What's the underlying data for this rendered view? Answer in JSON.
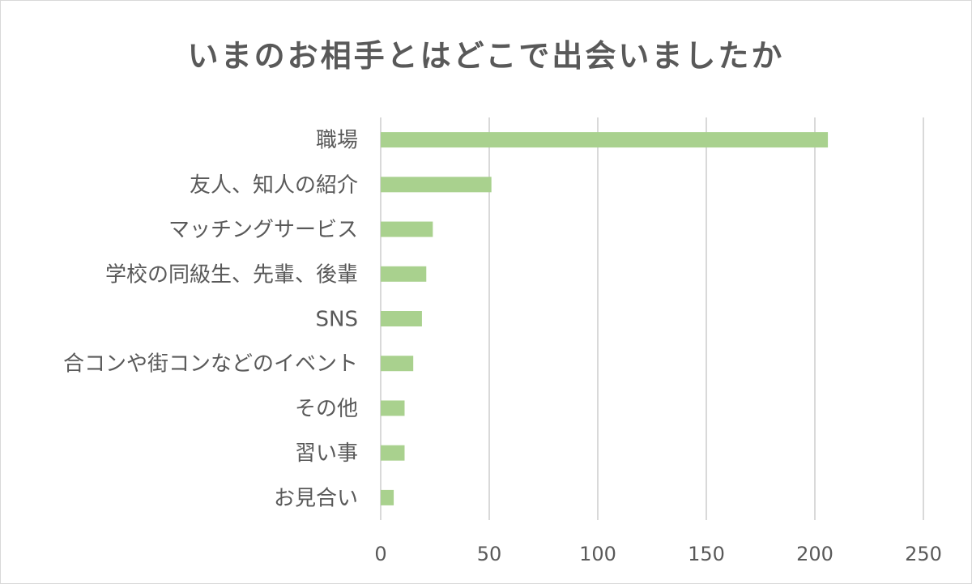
{
  "chart_data": {
    "type": "bar",
    "orientation": "horizontal",
    "title": "いまのお相手とはどこで出会いましたか",
    "categories": [
      "職場",
      "友人、知人の紹介",
      "マッチングサービス",
      "学校の同級生、先輩、後輩",
      "SNS",
      "合コンや街コンなどのイベント",
      "その他",
      "習い事",
      "お見合い"
    ],
    "values": [
      206,
      51,
      24,
      21,
      19,
      15,
      11,
      11,
      6
    ],
    "xlim": [
      0,
      250
    ],
    "xticks": [
      "0",
      "50",
      "100",
      "150",
      "200",
      "250"
    ],
    "grid": "vertical",
    "bar_color": "#a9d18e",
    "grid_color": "#d9d9d9",
    "text_color": "#595959"
  }
}
